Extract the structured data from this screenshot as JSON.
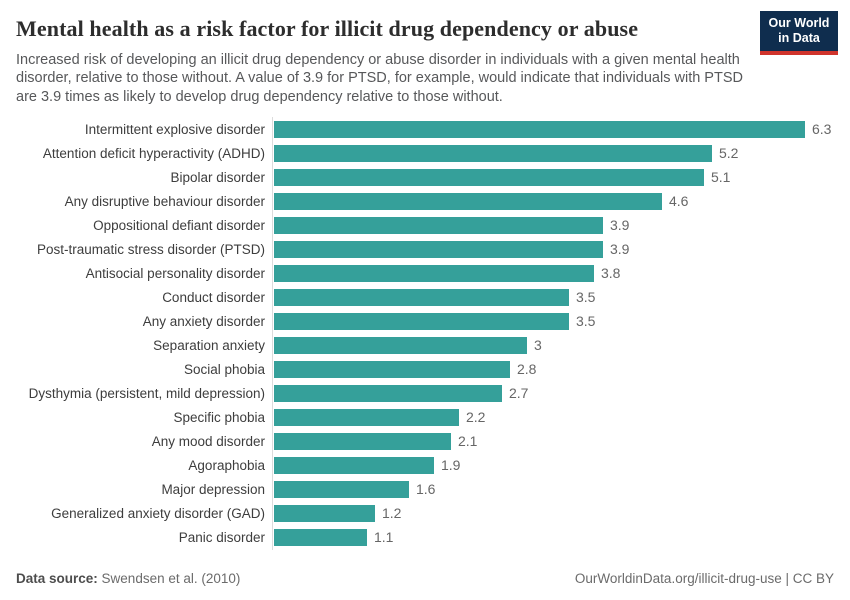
{
  "header": {
    "title": "Mental health as a risk factor for illicit drug dependency or abuse",
    "subtitle": "Increased risk of developing an illicit drug dependency or abuse disorder in individuals with a given mental health disorder, relative to those without. A value of 3.9 for PTSD, for example, would indicate that individuals with PTSD are 3.9 times as likely to develop drug dependency relative to those without.",
    "logo": {
      "line1": "Our World",
      "line2": "in Data",
      "bg_color": "#0F2D4E",
      "accent_color": "#D0342C"
    }
  },
  "chart_data": {
    "type": "bar",
    "orientation": "horizontal",
    "title": "Mental health as a risk factor for illicit drug dependency or abuse",
    "categories": [
      "Intermittent explosive disorder",
      "Attention deficit hyperactivity (ADHD)",
      "Bipolar disorder",
      "Any disruptive behaviour disorder",
      "Oppositional defiant disorder",
      "Post-traumatic stress disorder (PTSD)",
      "Antisocial personality disorder",
      "Conduct disorder",
      "Any anxiety disorder",
      "Separation anxiety",
      "Social phobia",
      "Dysthymia (persistent, mild depression)",
      "Specific phobia",
      "Any mood disorder",
      "Agoraphobia",
      "Major depression",
      "Generalized anxiety disorder (GAD)",
      "Panic disorder"
    ],
    "values": [
      6.3,
      5.2,
      5.1,
      4.6,
      3.9,
      3.9,
      3.8,
      3.5,
      3.5,
      3,
      2.8,
      2.7,
      2.2,
      2.1,
      1.9,
      1.6,
      1.2,
      1.1
    ],
    "value_labels": [
      "6.3",
      "5.2",
      "5.1",
      "4.6",
      "3.9",
      "3.9",
      "3.8",
      "3.5",
      "3.5",
      "3",
      "2.8",
      "2.7",
      "2.2",
      "2.1",
      "1.9",
      "1.6",
      "1.2",
      "1.1"
    ],
    "xlabel": "",
    "ylabel": "",
    "xlim": [
      0,
      6.3
    ],
    "grid": false,
    "legend": false,
    "bar_color": "#35A09A",
    "axis_line_color": "#DCDCDC"
  },
  "footer": {
    "datasource_label": "Data source:",
    "datasource_value": "Swendsen et al. (2010)",
    "right_text": "OurWorldinData.org/illicit-drug-use | CC BY"
  }
}
